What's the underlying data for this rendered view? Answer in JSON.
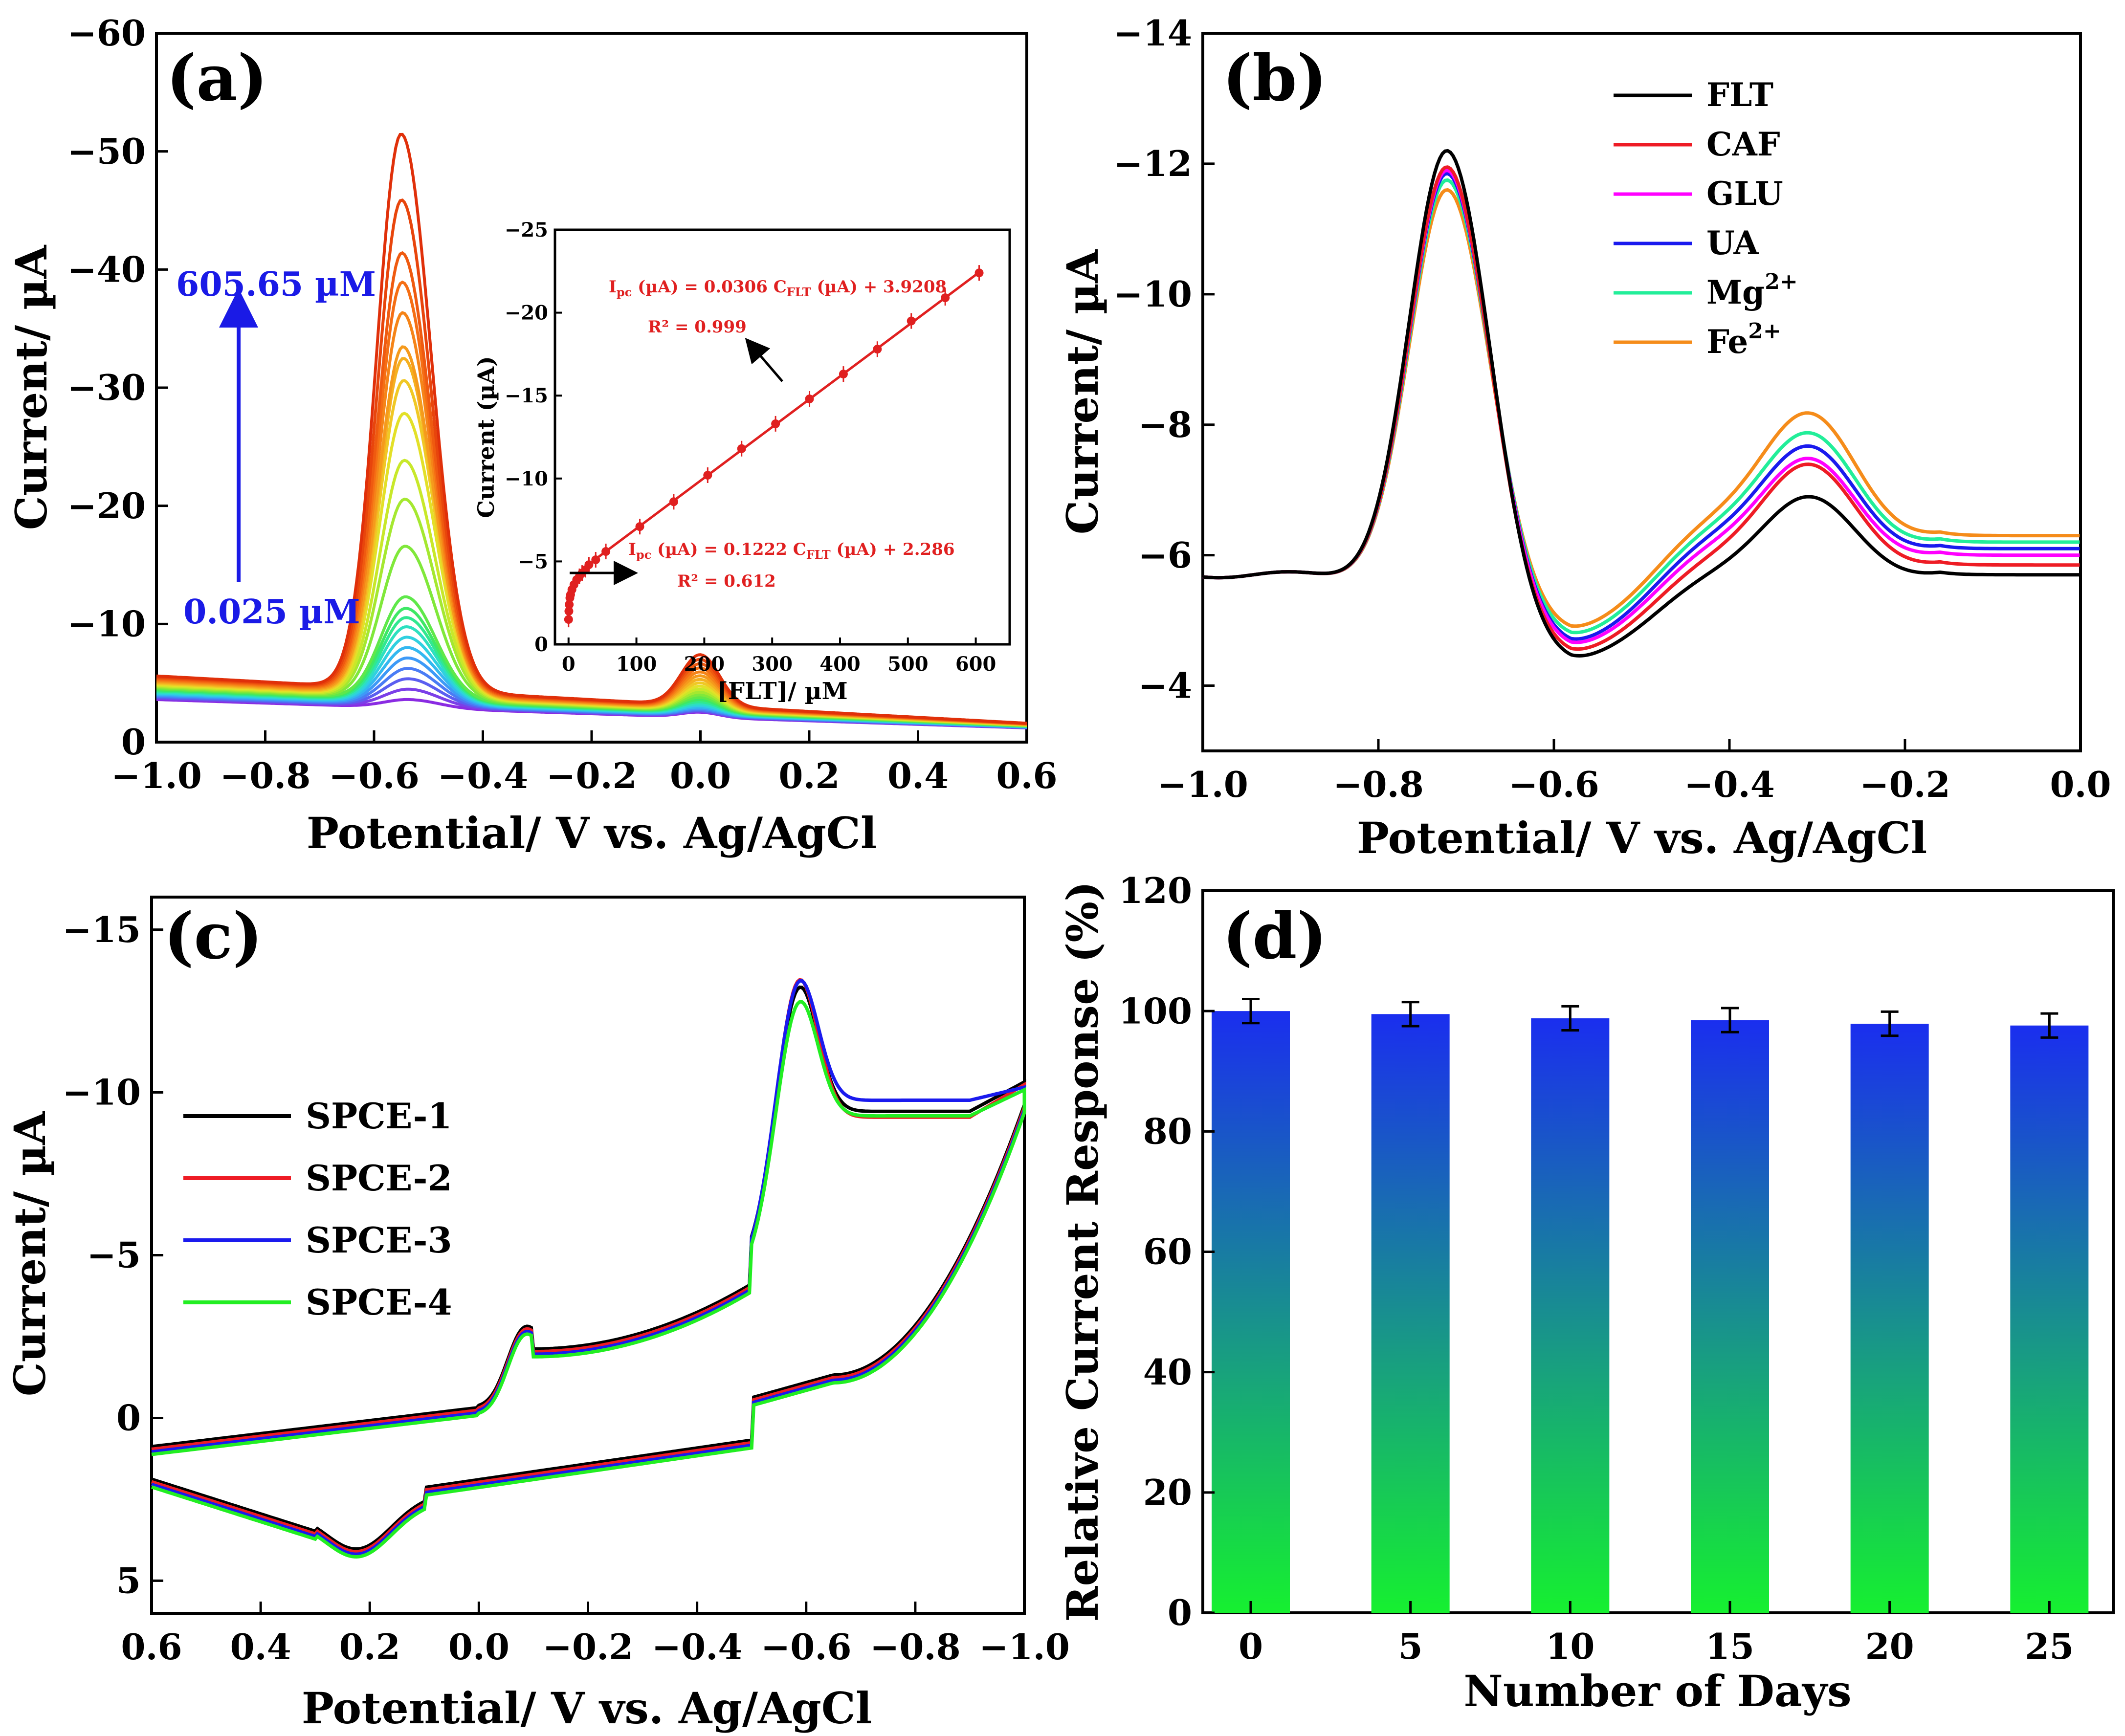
{
  "chart_data": [
    {
      "panel_label": "(a)",
      "type": "line",
      "title": "",
      "xlabel": "Potential/ V vs. Ag/AgCl",
      "ylabel": "Current/ µA",
      "xlim": [
        -1.0,
        0.6
      ],
      "ylim": [
        0,
        -60
      ],
      "xticks": [
        "−1.0",
        "−0.8",
        "−0.6",
        "−0.4",
        "−0.2",
        "0.0",
        "0.2",
        "0.4",
        "0.6"
      ],
      "yticks": [
        "0",
        "−10",
        "−20",
        "−30",
        "−40",
        "−50",
        "−60"
      ],
      "annotations": {
        "high": "605.65 µM",
        "low": "0.025 µM"
      },
      "series_peak_currents": [
        -4.3,
        -5.2,
        -6.1,
        -7.0,
        -7.9,
        -8.8,
        -9.7,
        -10.6,
        -11.4,
        -12.2,
        -13.2,
        -17.5,
        -21.5,
        -24.8,
        -28.8,
        -31.6,
        -33.5,
        -34.5,
        -37.4,
        -40.0,
        -42.5,
        -47.0,
        -52.6
      ],
      "series_colors": [
        "#8a2be2",
        "#7b3fe8",
        "#5b5ef0",
        "#4a7cf5",
        "#3d9af7",
        "#33b8f0",
        "#2fd0e0",
        "#2de0c0",
        "#30e890",
        "#3ee865",
        "#5fe84a",
        "#80e83a",
        "#a5e830",
        "#c8e82a",
        "#e3e028",
        "#f0c825",
        "#f5b020",
        "#f59a1c",
        "#f58418",
        "#f56e14",
        "#ef5a10",
        "#e8450c",
        "#e0300a"
      ],
      "second_peak": {
        "x": 0.0,
        "max_current": -4.3
      },
      "inset": {
        "xlabel": "[FLT]/ µM",
        "ylabel": "Current (µA)",
        "xlim": [
          0,
          650
        ],
        "ylim": [
          0,
          -25
        ],
        "xticks": [
          "0",
          "100",
          "200",
          "300",
          "400",
          "500",
          "600"
        ],
        "yticks": [
          "0",
          "−5",
          "−10",
          "−15",
          "−20",
          "−25"
        ],
        "points_high": {
          "x": [
            55,
            105,
            155,
            205,
            255,
            305,
            355,
            405,
            455,
            505,
            555,
            605
          ],
          "y": [
            -5.6,
            -7.1,
            -8.6,
            -10.2,
            -11.8,
            -13.3,
            -14.8,
            -16.3,
            -17.8,
            -19.5,
            -20.9,
            -22.4
          ]
        },
        "points_low": {
          "x": [
            0.025,
            0.5,
            1,
            2,
            3,
            5,
            8,
            12,
            16,
            20,
            25,
            30,
            40
          ],
          "y": [
            -1.5,
            -2.0,
            -2.4,
            -2.8,
            -3.0,
            -3.3,
            -3.6,
            -3.9,
            -4.1,
            -4.3,
            -4.5,
            -4.8,
            -5.1
          ]
        },
        "eq_high_main": "I",
        "eq_high_sub": "pc",
        "eq_high_mid": " (µA) = 0.0306 C",
        "eq_high_sub2": "FLT",
        "eq_high_tail": " (µA) + 3.9208",
        "r2_high": "R² = 0.999",
        "eq_low_main": "I",
        "eq_low_sub": "pc",
        "eq_low_mid": " (µA) = 0.1222 C",
        "eq_low_sub2": "FLT",
        "eq_low_tail": " (µA) + 2.286",
        "r2_low": "R² = 0.612"
      }
    },
    {
      "panel_label": "(b)",
      "type": "line",
      "xlabel": "Potential/ V vs. Ag/AgCl",
      "ylabel": "Current/ µA",
      "xlim": [
        -1.0,
        0.0
      ],
      "ylim": [
        -3,
        -14
      ],
      "xticks": [
        "−1.0",
        "−0.8",
        "−0.6",
        "−0.4",
        "−0.2",
        "0.0"
      ],
      "yticks": [
        "−4",
        "−6",
        "−8",
        "−10",
        "−12",
        "−14"
      ],
      "series": [
        {
          "name": "FLT",
          "sup": "",
          "color": "#000000",
          "peak1": -12.2,
          "peak2": -7.3,
          "valley": -4.3,
          "shoulder": -5.6,
          "end": -5.7
        },
        {
          "name": "CAF",
          "sup": "",
          "color": "#ee1c25",
          "peak1": -11.95,
          "peak2": -7.8,
          "valley": -4.4,
          "shoulder": -5.9,
          "end": -5.85
        },
        {
          "name": "GLU",
          "sup": "",
          "color": "#ff00ff",
          "peak1": -11.9,
          "peak2": -7.9,
          "valley": -4.5,
          "shoulder": -6.1,
          "end": -6.0
        },
        {
          "name": "UA",
          "sup": "",
          "color": "#1a1aee",
          "peak1": -11.85,
          "peak2": -8.1,
          "valley": -4.55,
          "shoulder": -6.25,
          "end": -6.1
        },
        {
          "name": "Mg",
          "sup": "2+",
          "color": "#22ee99",
          "peak1": -11.75,
          "peak2": -8.3,
          "valley": -4.65,
          "shoulder": -6.4,
          "end": -6.2
        },
        {
          "name": "Fe",
          "sup": "2+",
          "color": "#f58c1a",
          "peak1": -11.6,
          "peak2": -8.6,
          "valley": -4.75,
          "shoulder": -6.55,
          "end": -6.3
        }
      ]
    },
    {
      "panel_label": "(c)",
      "type": "line",
      "xlabel": "Potential/ V vs. Ag/AgCl",
      "ylabel": "Current/ µA",
      "xlim": [
        0.6,
        -1.0
      ],
      "ylim": [
        6,
        -16
      ],
      "xticks": [
        "0.6",
        "0.4",
        "0.2",
        "0.0",
        "−0.2",
        "−0.4",
        "−0.6",
        "−0.8",
        "−1.0"
      ],
      "yticks": [
        "5",
        "0",
        "−5",
        "−10",
        "−15"
      ],
      "series": [
        {
          "name": "SPCE-1",
          "color": "#000000",
          "peak": -13.6,
          "plateau": -9.3
        },
        {
          "name": "SPCE-2",
          "color": "#ee1c25",
          "peak": -13.9,
          "plateau": -9.2
        },
        {
          "name": "SPCE-3",
          "color": "#1a1aee",
          "peak": -14.0,
          "plateau": -9.8
        },
        {
          "name": "SPCE-4",
          "color": "#22ee22",
          "peak": -13.4,
          "plateau": -9.4
        }
      ]
    },
    {
      "panel_label": "(d)",
      "type": "bar",
      "xlabel": "Number of Days",
      "ylabel": "Relative Current Response (%)",
      "xlim": [
        -1.5,
        27
      ],
      "ylim": [
        0,
        120
      ],
      "xticks": [
        "0",
        "5",
        "10",
        "15",
        "20",
        "25"
      ],
      "yticks": [
        "0",
        "20",
        "40",
        "60",
        "80",
        "100",
        "120"
      ],
      "categories": [
        0,
        5,
        10,
        15,
        20,
        25
      ],
      "values": [
        100,
        99.5,
        98.8,
        98.5,
        97.9,
        97.6
      ],
      "errors": [
        2.0,
        2.0,
        2.0,
        2.0,
        2.0,
        2.0
      ],
      "bar_colors": {
        "top": "#1a2eef",
        "bottom": "#16f030"
      }
    }
  ]
}
